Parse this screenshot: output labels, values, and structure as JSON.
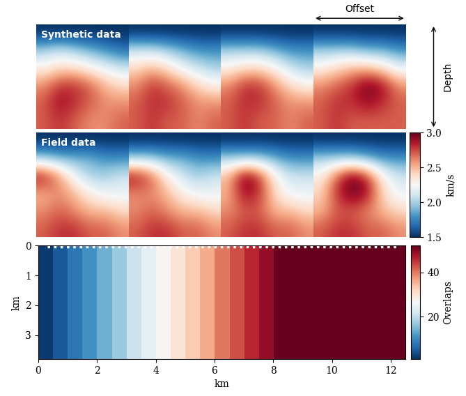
{
  "velocity_panels": {
    "annotations": {
      "offset": "Offset",
      "depth": "Depth"
    },
    "colorbar": {
      "label": "km/s",
      "clim": [
        1.5,
        3.0
      ],
      "ticks": [
        1.5,
        {
          "value": 2,
          "label": "2.0"
        },
        2.5,
        {
          "value": 3,
          "label": "3.0"
        }
      ]
    },
    "rows": [
      {
        "label": "Synthetic data",
        "panels": [
          [
            [
              1.5,
              1.5,
              1.5,
              1.5,
              1.5,
              1.5
            ],
            [
              2.0,
              2.1,
              2.0,
              1.9,
              1.8,
              1.7
            ],
            [
              2.3,
              2.4,
              2.4,
              2.3,
              2.2,
              2.1
            ],
            [
              2.6,
              2.8,
              2.8,
              2.7,
              2.5,
              2.4
            ],
            [
              2.7,
              2.9,
              2.8,
              2.7,
              2.6,
              2.6
            ],
            [
              2.7,
              2.8,
              2.7,
              2.6,
              2.6,
              2.7
            ]
          ],
          [
            [
              1.5,
              1.5,
              1.5,
              1.5,
              1.5,
              1.5
            ],
            [
              2.1,
              2.1,
              2.0,
              1.9,
              1.8,
              1.8
            ],
            [
              2.4,
              2.5,
              2.4,
              2.2,
              2.1,
              2.0
            ],
            [
              2.6,
              2.8,
              2.7,
              2.6,
              2.4,
              2.3
            ],
            [
              2.7,
              2.8,
              2.8,
              2.7,
              2.6,
              2.6
            ],
            [
              2.7,
              2.8,
              2.7,
              2.7,
              2.6,
              2.7
            ]
          ],
          [
            [
              1.5,
              1.5,
              1.5,
              1.5,
              1.5,
              1.5
            ],
            [
              2.0,
              2.0,
              2.0,
              1.9,
              1.8,
              1.8
            ],
            [
              2.3,
              2.4,
              2.4,
              2.3,
              2.1,
              2.0
            ],
            [
              2.6,
              2.8,
              2.8,
              2.6,
              2.4,
              2.3
            ],
            [
              2.7,
              2.8,
              2.8,
              2.7,
              2.6,
              2.6
            ],
            [
              2.7,
              2.8,
              2.7,
              2.7,
              2.6,
              2.7
            ]
          ],
          [
            [
              1.5,
              1.5,
              1.5,
              1.5,
              1.5,
              1.5
            ],
            [
              2.0,
              2.0,
              2.0,
              1.9,
              1.9,
              1.8
            ],
            [
              2.3,
              2.4,
              2.5,
              2.5,
              2.4,
              2.2
            ],
            [
              2.6,
              2.7,
              2.8,
              3.0,
              2.9,
              2.6
            ],
            [
              2.7,
              2.8,
              2.8,
              2.9,
              2.8,
              2.7
            ],
            [
              2.7,
              2.8,
              2.7,
              2.7,
              2.7,
              2.7
            ]
          ]
        ]
      },
      {
        "label": "Field data",
        "panels": [
          [
            [
              1.5,
              1.5,
              1.5,
              1.5,
              1.5,
              1.5
            ],
            [
              2.0,
              1.9,
              1.9,
              1.9,
              1.8,
              1.8
            ],
            [
              2.9,
              2.6,
              2.2,
              2.0,
              2.0,
              2.1
            ],
            [
              2.5,
              2.6,
              2.5,
              2.3,
              2.2,
              2.2
            ],
            [
              2.6,
              2.7,
              2.6,
              2.5,
              2.5,
              2.4
            ],
            [
              2.7,
              2.8,
              2.8,
              2.7,
              2.7,
              2.6
            ]
          ],
          [
            [
              1.5,
              1.5,
              1.5,
              1.5,
              1.5,
              1.5
            ],
            [
              2.0,
              2.0,
              1.9,
              1.9,
              1.8,
              1.8
            ],
            [
              2.9,
              2.7,
              2.3,
              2.1,
              2.0,
              2.1
            ],
            [
              2.6,
              2.6,
              2.5,
              2.3,
              2.2,
              2.2
            ],
            [
              2.6,
              2.7,
              2.6,
              2.5,
              2.5,
              2.4
            ],
            [
              2.7,
              2.8,
              2.8,
              2.7,
              2.7,
              2.6
            ]
          ],
          [
            [
              1.5,
              1.5,
              1.5,
              1.5,
              1.5,
              1.5
            ],
            [
              2.0,
              2.0,
              2.0,
              1.9,
              1.8,
              1.8
            ],
            [
              2.5,
              3.0,
              2.8,
              2.3,
              2.1,
              2.1
            ],
            [
              2.5,
              2.9,
              2.8,
              2.4,
              2.2,
              2.2
            ],
            [
              2.6,
              2.7,
              2.7,
              2.5,
              2.5,
              2.4
            ],
            [
              2.7,
              2.8,
              2.8,
              2.7,
              2.7,
              2.6
            ]
          ],
          [
            [
              1.5,
              1.5,
              1.5,
              1.5,
              1.5,
              1.5
            ],
            [
              2.0,
              2.0,
              2.0,
              1.9,
              1.8,
              1.8
            ],
            [
              2.3,
              2.7,
              3.0,
              2.8,
              2.3,
              2.1
            ],
            [
              2.4,
              2.8,
              3.0,
              2.9,
              2.4,
              2.2
            ],
            [
              2.5,
              2.7,
              2.7,
              2.6,
              2.5,
              2.4
            ],
            [
              2.7,
              2.8,
              2.8,
              2.7,
              2.7,
              2.6
            ]
          ]
        ]
      }
    ]
  },
  "chart_data": {
    "type": "heatmap",
    "xlabel": "km",
    "ylabel": "km",
    "xlim": [
      0,
      12.5
    ],
    "ylim": [
      3.8,
      0
    ],
    "xticks": [
      0,
      2,
      4,
      6,
      8,
      10,
      12
    ],
    "yticks": [
      0,
      1,
      2,
      3
    ],
    "cells": [
      [
        2,
        5,
        8,
        11,
        14,
        17,
        21,
        24,
        27,
        30,
        33,
        36,
        40,
        43,
        46,
        49,
        52,
        52,
        52,
        52,
        52,
        52,
        52,
        52,
        52
      ]
    ],
    "colorbar": {
      "label": "Overlaps",
      "clim": [
        1,
        52
      ],
      "ticks": [
        20,
        40
      ]
    },
    "source_line": {
      "x": [
        0.3,
        12.2
      ],
      "depth": 0.05,
      "color": "white",
      "line_style": "dotted"
    }
  }
}
